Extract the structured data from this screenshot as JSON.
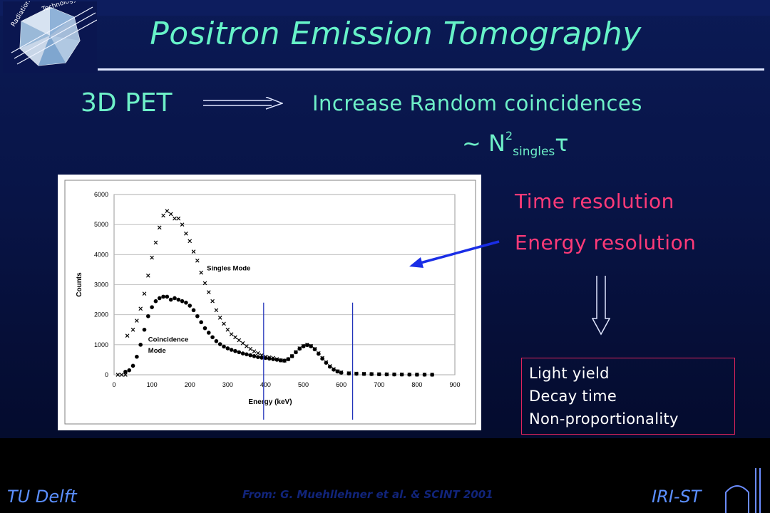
{
  "slide": {
    "title": "Positron Emission Tomography",
    "lead_term": "3D PET",
    "consequence": "Increase Random coincidences",
    "formula": {
      "prefix": "~ N",
      "power": "2",
      "subscript": "singles",
      "suffix": "τ"
    },
    "factors": [
      "Time resolution",
      "Energy resolution"
    ],
    "properties": [
      "Light yield",
      "Decay time",
      "Non-proportionality"
    ],
    "footer_left": "TU Delft",
    "citation": "From: G. Muehllehner et al. & SCINT 2001",
    "footer_right": "IRI-ST",
    "colors": {
      "title": "#66f2c8",
      "accent_pink": "#ff3a78",
      "footer_text": "#5b8fff",
      "arrow_blue": "#1a2ee6"
    }
  },
  "chart_data": {
    "type": "scatter",
    "xlabel": "Energy (keV)",
    "ylabel": "Counts",
    "xlim": [
      0,
      900
    ],
    "ylim": [
      0,
      6000
    ],
    "x_ticks": [
      "0",
      "100",
      "200",
      "300",
      "400",
      "500",
      "600",
      "700",
      "800",
      "900"
    ],
    "y_ticks": [
      "0",
      "1000",
      "2000",
      "3000",
      "4000",
      "5000",
      "6000"
    ],
    "grid": true,
    "annotations": [
      {
        "text": "Singles Mode",
        "x": 245,
        "y": 3480
      },
      {
        "text": "Coincidence",
        "x": 90,
        "y": 1100
      },
      {
        "text": "Mode",
        "x": 90,
        "y": 740
      }
    ],
    "vertical_markers": [
      395,
      630
    ],
    "series": [
      {
        "name": "Singles Mode",
        "marker": "x",
        "points": [
          [
            10,
            0
          ],
          [
            20,
            0
          ],
          [
            30,
            0
          ],
          [
            35,
            1300
          ],
          [
            50,
            1500
          ],
          [
            60,
            1800
          ],
          [
            70,
            2200
          ],
          [
            80,
            2700
          ],
          [
            90,
            3300
          ],
          [
            100,
            3900
          ],
          [
            110,
            4400
          ],
          [
            120,
            4900
          ],
          [
            130,
            5300
          ],
          [
            140,
            5450
          ],
          [
            150,
            5350
          ],
          [
            160,
            5200
          ],
          [
            170,
            5200
          ],
          [
            180,
            5000
          ],
          [
            190,
            4700
          ],
          [
            200,
            4450
          ],
          [
            210,
            4100
          ],
          [
            220,
            3800
          ],
          [
            230,
            3400
          ],
          [
            240,
            3050
          ],
          [
            250,
            2750
          ],
          [
            260,
            2450
          ],
          [
            270,
            2150
          ],
          [
            280,
            1900
          ],
          [
            290,
            1700
          ],
          [
            300,
            1500
          ],
          [
            310,
            1350
          ],
          [
            320,
            1250
          ],
          [
            330,
            1150
          ],
          [
            340,
            1050
          ],
          [
            350,
            950
          ],
          [
            360,
            860
          ],
          [
            370,
            780
          ],
          [
            380,
            720
          ],
          [
            390,
            650
          ],
          [
            400,
            600
          ],
          [
            410,
            580
          ],
          [
            420,
            560
          ],
          [
            430,
            520
          ],
          [
            440,
            480
          ],
          [
            450,
            470
          ],
          [
            460,
            520
          ],
          [
            470,
            620
          ],
          [
            480,
            760
          ],
          [
            490,
            880
          ],
          [
            500,
            960
          ],
          [
            510,
            1000
          ],
          [
            520,
            960
          ],
          [
            530,
            860
          ],
          [
            540,
            720
          ],
          [
            550,
            560
          ],
          [
            560,
            420
          ],
          [
            570,
            290
          ],
          [
            580,
            190
          ],
          [
            590,
            120
          ],
          [
            600,
            80
          ],
          [
            620,
            50
          ],
          [
            640,
            40
          ],
          [
            660,
            30
          ],
          [
            680,
            25
          ],
          [
            700,
            20
          ],
          [
            720,
            15
          ],
          [
            740,
            12
          ],
          [
            760,
            10
          ],
          [
            780,
            8
          ],
          [
            800,
            6
          ],
          [
            820,
            5
          ],
          [
            840,
            4
          ]
        ]
      },
      {
        "name": "Coincidence Mode",
        "marker": "dot",
        "points": [
          [
            30,
            100
          ],
          [
            40,
            150
          ],
          [
            50,
            300
          ],
          [
            60,
            600
          ],
          [
            70,
            1000
          ],
          [
            80,
            1500
          ],
          [
            90,
            1950
          ],
          [
            100,
            2250
          ],
          [
            110,
            2450
          ],
          [
            120,
            2550
          ],
          [
            130,
            2600
          ],
          [
            140,
            2600
          ],
          [
            150,
            2500
          ],
          [
            160,
            2550
          ],
          [
            170,
            2500
          ],
          [
            180,
            2450
          ],
          [
            190,
            2400
          ],
          [
            200,
            2300
          ],
          [
            210,
            2150
          ],
          [
            220,
            1950
          ],
          [
            230,
            1750
          ],
          [
            240,
            1550
          ],
          [
            250,
            1400
          ],
          [
            260,
            1250
          ],
          [
            270,
            1120
          ],
          [
            280,
            1020
          ],
          [
            290,
            940
          ],
          [
            300,
            880
          ],
          [
            310,
            830
          ],
          [
            320,
            790
          ],
          [
            330,
            750
          ],
          [
            340,
            710
          ],
          [
            350,
            680
          ],
          [
            360,
            650
          ],
          [
            370,
            620
          ],
          [
            380,
            590
          ],
          [
            390,
            570
          ],
          [
            400,
            560
          ],
          [
            410,
            540
          ],
          [
            420,
            520
          ],
          [
            430,
            500
          ],
          [
            440,
            480
          ],
          [
            450,
            470
          ],
          [
            460,
            520
          ],
          [
            470,
            620
          ],
          [
            480,
            750
          ],
          [
            490,
            870
          ],
          [
            500,
            950
          ],
          [
            510,
            990
          ],
          [
            520,
            950
          ],
          [
            530,
            850
          ],
          [
            540,
            700
          ],
          [
            550,
            540
          ],
          [
            560,
            400
          ],
          [
            570,
            270
          ],
          [
            580,
            170
          ],
          [
            590,
            110
          ],
          [
            600,
            70
          ],
          [
            620,
            45
          ],
          [
            640,
            35
          ],
          [
            660,
            28
          ],
          [
            680,
            22
          ],
          [
            700,
            18
          ],
          [
            720,
            14
          ],
          [
            740,
            11
          ],
          [
            760,
            9
          ],
          [
            780,
            7
          ],
          [
            800,
            5
          ],
          [
            820,
            4
          ],
          [
            840,
            3
          ]
        ]
      }
    ]
  }
}
